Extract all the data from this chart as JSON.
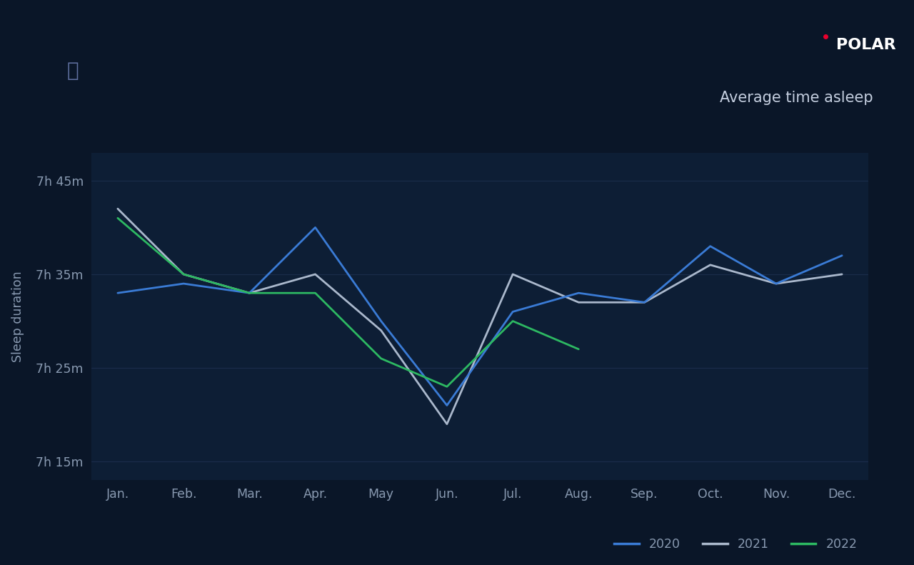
{
  "background_color": "#050e1f",
  "plot_bg_color": "#0d1e35",
  "chart_bg_color": "#0a1628",
  "title": "Average time asleep",
  "ylabel": "Sleep duration",
  "months": [
    "Jan.",
    "Feb.",
    "Mar.",
    "Apr.",
    "May",
    "Jun.",
    "Jul.",
    "Aug.",
    "Sep.",
    "Oct.",
    "Nov.",
    "Dec."
  ],
  "ytick_values": [
    435,
    445,
    455,
    465
  ],
  "ytick_labels": [
    "7h 15m",
    "7h 25m",
    "7h 35m",
    "7h 45m"
  ],
  "y2020": [
    453,
    454,
    453,
    460,
    450,
    441,
    451,
    453,
    452,
    458,
    454,
    457
  ],
  "y2021": [
    462,
    455,
    453,
    455,
    449,
    439,
    455,
    452,
    452,
    456,
    454,
    455
  ],
  "y2022": [
    461,
    455,
    453,
    453,
    446,
    443,
    450,
    447,
    null,
    null,
    null,
    null
  ],
  "color_2020": "#3a7bd5",
  "color_2021": "#aab8cc",
  "color_2022": "#2db862",
  "grid_color": "#1e3050",
  "tick_color": "#8899b0",
  "line_width": 2.0,
  "ylim_min": 433,
  "ylim_max": 468
}
